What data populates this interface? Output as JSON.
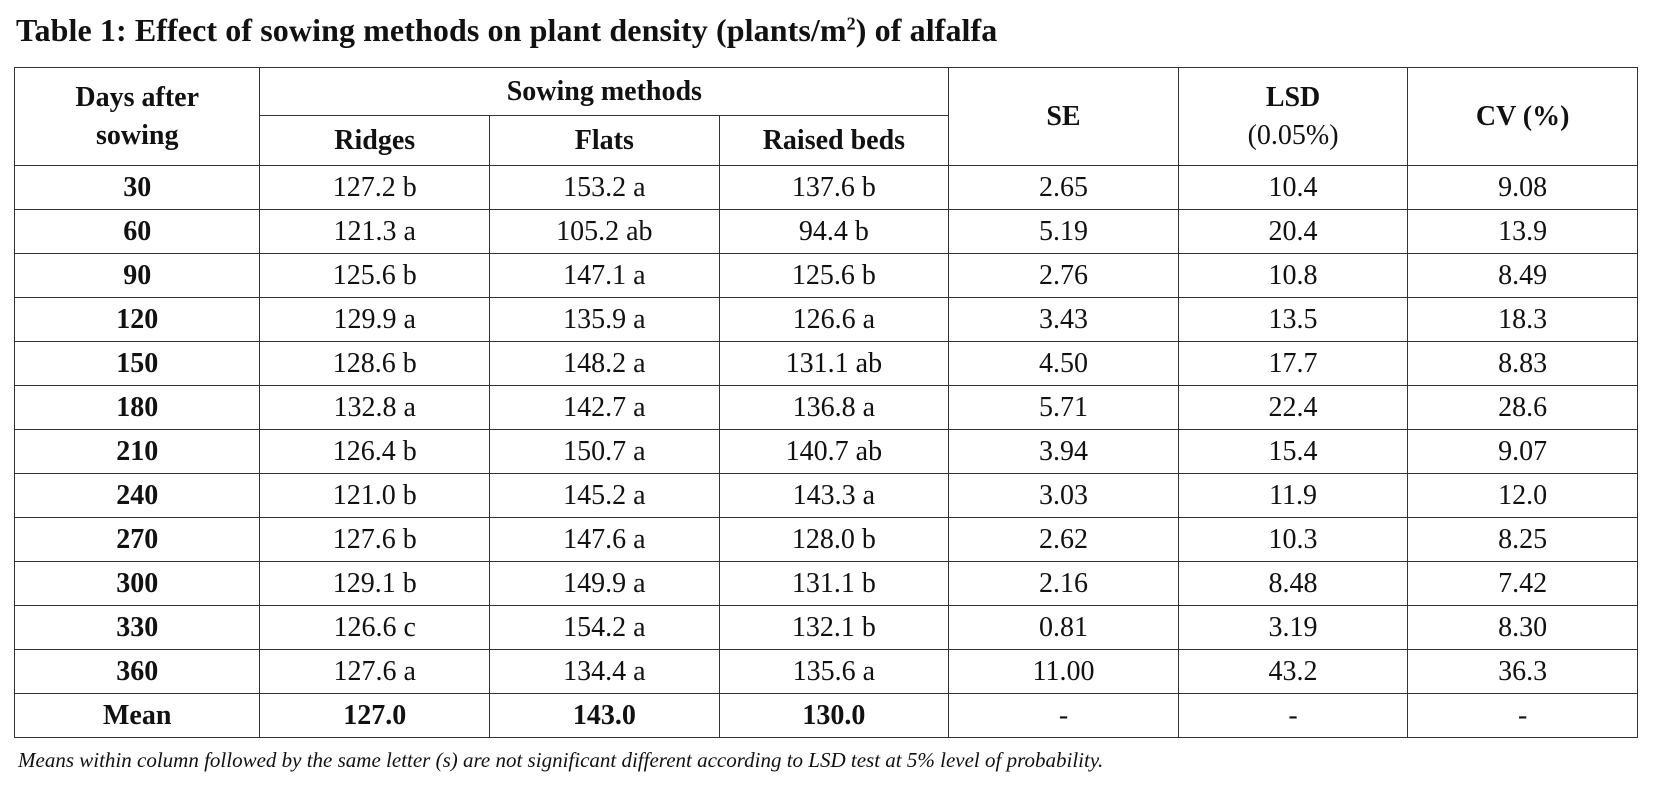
{
  "table": {
    "title": "Table 1: Effect of sowing methods on plant density (plants/m",
    "title_sup": "2",
    "title_end": ") of alfalfa",
    "headers": {
      "days_line1": "Days after",
      "days_line2": "sowing",
      "sowing_methods": "Sowing methods",
      "ridges": "Ridges",
      "flats": "Flats",
      "raised_beds": "Raised beds",
      "se": "SE",
      "lsd_line1": "LSD",
      "lsd_line2": "(0.05%)",
      "cv": "CV (%)"
    },
    "rows": [
      {
        "day": "30",
        "ridges": "127.2 b",
        "flats": "153.2 a",
        "raised": "137.6 b",
        "se": "2.65",
        "lsd": "10.4",
        "cv": "9.08"
      },
      {
        "day": "60",
        "ridges": "121.3 a",
        "flats": "105.2 ab",
        "raised": "94.4 b",
        "se": "5.19",
        "lsd": "20.4",
        "cv": "13.9"
      },
      {
        "day": "90",
        "ridges": "125.6 b",
        "flats": "147.1 a",
        "raised": "125.6 b",
        "se": "2.76",
        "lsd": "10.8",
        "cv": "8.49"
      },
      {
        "day": "120",
        "ridges": "129.9 a",
        "flats": "135.9 a",
        "raised": "126.6 a",
        "se": "3.43",
        "lsd": "13.5",
        "cv": "18.3"
      },
      {
        "day": "150",
        "ridges": "128.6 b",
        "flats": "148.2 a",
        "raised": "131.1 ab",
        "se": "4.50",
        "lsd": "17.7",
        "cv": "8.83"
      },
      {
        "day": "180",
        "ridges": "132.8 a",
        "flats": "142.7 a",
        "raised": "136.8 a",
        "se": "5.71",
        "lsd": "22.4",
        "cv": "28.6"
      },
      {
        "day": "210",
        "ridges": "126.4 b",
        "flats": "150.7 a",
        "raised": "140.7 ab",
        "se": "3.94",
        "lsd": "15.4",
        "cv": "9.07"
      },
      {
        "day": "240",
        "ridges": "121.0 b",
        "flats": "145.2 a",
        "raised": "143.3 a",
        "se": "3.03",
        "lsd": "11.9",
        "cv": "12.0"
      },
      {
        "day": "270",
        "ridges": "127.6 b",
        "flats": "147.6 a",
        "raised": "128.0 b",
        "se": "2.62",
        "lsd": "10.3",
        "cv": "8.25"
      },
      {
        "day": "300",
        "ridges": "129.1 b",
        "flats": "149.9 a",
        "raised": "131.1 b",
        "se": "2.16",
        "lsd": "8.48",
        "cv": "7.42"
      },
      {
        "day": "330",
        "ridges": "126.6 c",
        "flats": "154.2 a",
        "raised": "132.1 b",
        "se": "0.81",
        "lsd": "3.19",
        "cv": "8.30"
      },
      {
        "day": "360",
        "ridges": "127.6 a",
        "flats": "134.4 a",
        "raised": "135.6 a",
        "se": "11.00",
        "lsd": "43.2",
        "cv": "36.3"
      }
    ],
    "mean": {
      "label": "Mean",
      "ridges": "127.0",
      "flats": "143.0",
      "raised": "130.0",
      "se": "-",
      "lsd": "-",
      "cv": "-"
    },
    "footnote": "Means within column followed by the same letter (s) are not significant different according to LSD test at 5% level of probability."
  }
}
